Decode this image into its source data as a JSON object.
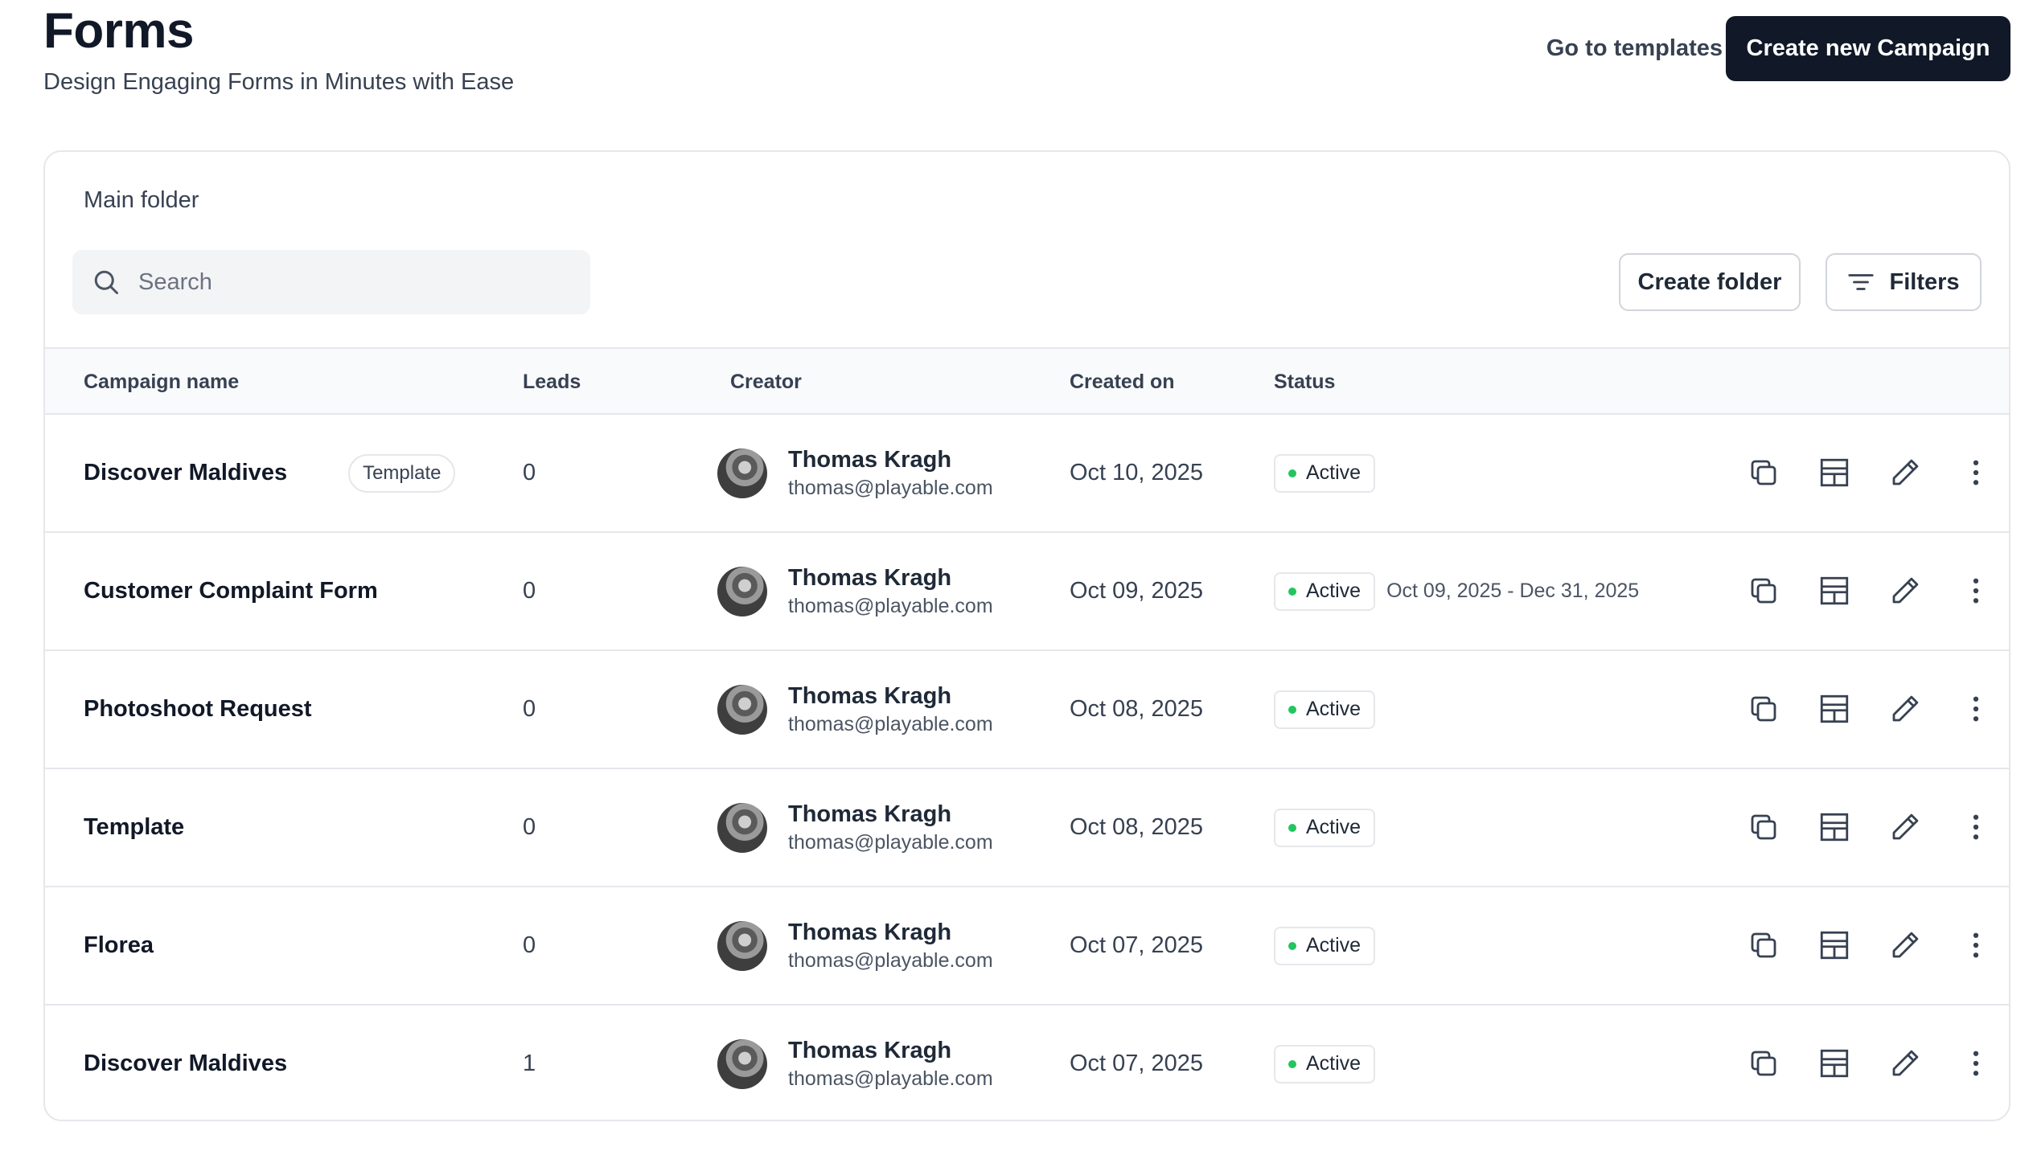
{
  "header": {
    "title": "Forms",
    "subtitle": "Design Engaging Forms in Minutes with Ease",
    "templates_link": "Go to templates",
    "create_button": "Create new Campaign"
  },
  "folder": {
    "label": "Main folder",
    "search_placeholder": "Search",
    "create_folder_button": "Create folder",
    "filters_button": "Filters"
  },
  "table": {
    "columns": {
      "campaign_name": "Campaign name",
      "leads": "Leads",
      "creator": "Creator",
      "created_on": "Created on",
      "status": "Status"
    },
    "rows": [
      {
        "name": "Discover Maldives",
        "tag": "Template",
        "leads": "0",
        "creator_name": "Thomas Kragh",
        "creator_email": "thomas@playable.com",
        "created_on": "Oct 10, 2025",
        "status": "Active",
        "range": ""
      },
      {
        "name": "Customer Complaint Form",
        "tag": "",
        "leads": "0",
        "creator_name": "Thomas Kragh",
        "creator_email": "thomas@playable.com",
        "created_on": "Oct 09, 2025",
        "status": "Active",
        "range": "Oct 09, 2025 - Dec 31, 2025"
      },
      {
        "name": "Photoshoot Request",
        "tag": "",
        "leads": "0",
        "creator_name": "Thomas Kragh",
        "creator_email": "thomas@playable.com",
        "created_on": "Oct 08, 2025",
        "status": "Active",
        "range": ""
      },
      {
        "name": "Template",
        "tag": "",
        "leads": "0",
        "creator_name": "Thomas Kragh",
        "creator_email": "thomas@playable.com",
        "created_on": "Oct 08, 2025",
        "status": "Active",
        "range": ""
      },
      {
        "name": "Florea",
        "tag": "",
        "leads": "0",
        "creator_name": "Thomas Kragh",
        "creator_email": "thomas@playable.com",
        "created_on": "Oct 07, 2025",
        "status": "Active",
        "range": ""
      },
      {
        "name": "Discover Maldives",
        "tag": "",
        "leads": "1",
        "creator_name": "Thomas Kragh",
        "creator_email": "thomas@playable.com",
        "created_on": "Oct 07, 2025",
        "status": "Active",
        "range": ""
      }
    ],
    "row_actions": [
      "copy-icon",
      "layout-icon",
      "pencil-icon",
      "more-vertical-icon"
    ]
  },
  "colors": {
    "primary_button": "#111827",
    "status_active": "#22c55e",
    "header_bg": "#f9fafb",
    "border": "#e5e7eb"
  }
}
